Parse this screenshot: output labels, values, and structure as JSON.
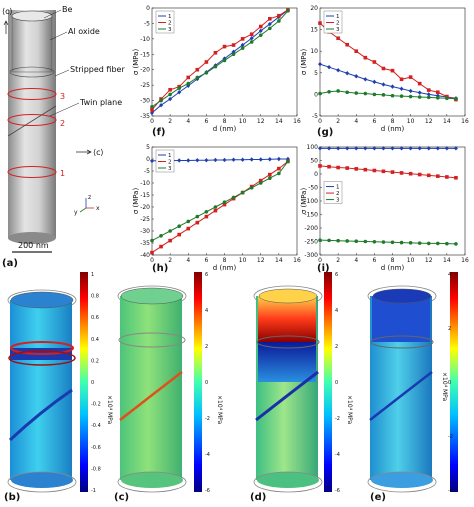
{
  "schematic": {
    "c_axis": "⟨c⟩",
    "c_axis_side": "⟨c⟩",
    "be": "Be",
    "al_oxide": "Al oxide",
    "stripped": "Stripped fiber",
    "twin": "Twin plane",
    "marks": [
      "1",
      "2",
      "3"
    ],
    "scale": "200 nm",
    "axes": {
      "z": "z",
      "y": "y",
      "x": "x"
    }
  },
  "panel_labels": {
    "a": "(a)",
    "b": "(b)",
    "c": "(c)",
    "d": "(d)",
    "e": "(e)",
    "f": "(f)",
    "g": "(g)",
    "h": "(h)",
    "i": "(i)"
  },
  "colorbars": {
    "b": {
      "ticks": [
        "1",
        "0.8",
        "0.6",
        "0.4",
        "0.2",
        "0",
        "-0.2",
        "-0.4",
        "-0.6",
        "-0.8",
        "-1"
      ],
      "label": "×10⁴ MPa"
    },
    "c": {
      "ticks": [
        "6",
        "4",
        "2",
        "0",
        "-2",
        "-4",
        "-6"
      ],
      "label": "×10⁴ MPa"
    },
    "d": {
      "ticks": [
        "6",
        "4",
        "2",
        "0",
        "-2",
        "-4",
        "-6"
      ],
      "label": "×10⁴ MPa"
    },
    "e": {
      "ticks": [
        "4",
        "2",
        "0",
        "-2",
        "-4"
      ],
      "label": "×10⁴ MPa"
    }
  },
  "chart_data": [
    {
      "panel": "f",
      "type": "line",
      "xlabel": "d (nm)",
      "ylabel": "σ (MPa)",
      "x": [
        0,
        1,
        2,
        3,
        4,
        5,
        6,
        7,
        8,
        9,
        10,
        11,
        12,
        13,
        14,
        15
      ],
      "xticks": [
        "0",
        "2",
        "4",
        "6",
        "8",
        "10",
        "12",
        "14",
        "16"
      ],
      "yticks": [
        "0",
        "-5",
        "-10",
        "-15",
        "-20",
        "-25",
        "-30",
        "-35"
      ],
      "xlim": [
        0,
        16
      ],
      "ylim": [
        -35,
        0
      ],
      "legend": "top-left",
      "series": [
        {
          "name": "1",
          "color": "#1f3fb0",
          "marker": "diamond",
          "values": [
            -34,
            -31.5,
            -29.5,
            -27.3,
            -25.2,
            -23,
            -20.8,
            -18.6,
            -16.4,
            -14.2,
            -12,
            -9.8,
            -7.4,
            -5.2,
            -2.9,
            -0.7
          ]
        },
        {
          "name": "2",
          "color": "#d42020",
          "marker": "square",
          "values": [
            -33,
            -29.5,
            -26.5,
            -25.5,
            -22.5,
            -20,
            -17.5,
            -14.5,
            -12.5,
            -12,
            -10,
            -8.5,
            -6,
            -3.5,
            -2.5,
            -0.6
          ]
        },
        {
          "name": "3",
          "color": "#1f7a2a",
          "marker": "circle",
          "values": [
            -32,
            -30,
            -28,
            -26,
            -24.5,
            -22.5,
            -21,
            -19,
            -17,
            -15,
            -13,
            -11,
            -8.8,
            -6.6,
            -4.2,
            -0.9
          ]
        }
      ]
    },
    {
      "panel": "g",
      "type": "line",
      "xlabel": "d (nm)",
      "ylabel": "σ (MPa)",
      "x": [
        0,
        1,
        2,
        3,
        4,
        5,
        6,
        7,
        8,
        9,
        10,
        11,
        12,
        13,
        14,
        15
      ],
      "xticks": [
        "0",
        "2",
        "4",
        "6",
        "8",
        "10",
        "12",
        "14",
        "16"
      ],
      "yticks": [
        "20",
        "15",
        "10",
        "5",
        "0",
        "-5"
      ],
      "xlim": [
        0,
        16
      ],
      "ylim": [
        -5,
        20
      ],
      "legend": "top-left",
      "series": [
        {
          "name": "1",
          "color": "#1f3fb0",
          "marker": "diamond",
          "values": [
            7,
            6.3,
            5.6,
            4.9,
            4.2,
            3.5,
            2.9,
            2.3,
            1.8,
            1.3,
            0.8,
            0.4,
            0,
            -0.3,
            -0.6,
            -0.9
          ]
        },
        {
          "name": "2",
          "color": "#d42020",
          "marker": "square",
          "values": [
            16.5,
            14.5,
            13,
            11.5,
            10,
            8.5,
            7.5,
            6,
            5.5,
            3.5,
            4,
            2.5,
            1,
            0.5,
            -0.5,
            -1.2
          ]
        },
        {
          "name": "3",
          "color": "#1f7a2a",
          "marker": "circle",
          "values": [
            0.2,
            0.6,
            0.8,
            0.5,
            0.3,
            0.2,
            0,
            -0.1,
            -0.3,
            -0.4,
            -0.5,
            -0.6,
            -0.7,
            -0.8,
            -0.9,
            -1
          ]
        }
      ]
    },
    {
      "panel": "h",
      "type": "line",
      "xlabel": "d (nm)",
      "ylabel": "σ (MPa)",
      "x": [
        0,
        1,
        2,
        3,
        4,
        5,
        6,
        7,
        8,
        9,
        10,
        11,
        12,
        13,
        14,
        15
      ],
      "xticks": [
        "0",
        "2",
        "4",
        "6",
        "8",
        "10",
        "12",
        "14",
        "16"
      ],
      "yticks": [
        "5",
        "0",
        "-5",
        "-10",
        "-15",
        "-20",
        "-25",
        "-30",
        "-35",
        "-40"
      ],
      "xlim": [
        0,
        16
      ],
      "ylim": [
        -40,
        5
      ],
      "legend": "top-left",
      "series": [
        {
          "name": "1",
          "color": "#1f3fb0",
          "marker": "diamond",
          "values": [
            -0.8,
            -0.7,
            -0.7,
            -0.6,
            -0.6,
            -0.5,
            -0.5,
            -0.4,
            -0.4,
            -0.3,
            -0.3,
            -0.2,
            -0.2,
            -0.1,
            0,
            0
          ]
        },
        {
          "name": "2",
          "color": "#d42020",
          "marker": "square",
          "values": [
            -39,
            -36.5,
            -34,
            -31.5,
            -29,
            -26.5,
            -24,
            -21.5,
            -19,
            -16.5,
            -14,
            -11.5,
            -9,
            -6.5,
            -4,
            -1
          ]
        },
        {
          "name": "3",
          "color": "#1f7a2a",
          "marker": "circle",
          "values": [
            -34,
            -32,
            -30,
            -28,
            -26,
            -24,
            -22,
            -20,
            -18,
            -16,
            -14,
            -12,
            -10,
            -8,
            -6,
            -1
          ]
        }
      ]
    },
    {
      "panel": "i",
      "type": "line",
      "xlabel": "d (nm)",
      "ylabel": "σ (MPa)",
      "x": [
        0,
        1,
        2,
        3,
        4,
        5,
        6,
        7,
        8,
        9,
        10,
        11,
        12,
        13,
        14,
        15
      ],
      "xticks": [
        "0",
        "2",
        "4",
        "6",
        "8",
        "10",
        "12",
        "14",
        "16"
      ],
      "yticks": [
        "100",
        "50",
        "0",
        "-50",
        "-100",
        "-150",
        "-200",
        "-250",
        "-300"
      ],
      "xlim": [
        0,
        16
      ],
      "ylim": [
        -300,
        100
      ],
      "legend": "left",
      "series": [
        {
          "name": "1",
          "color": "#1f3fb0",
          "marker": "diamond",
          "values": [
            95,
            95,
            95,
            95,
            95,
            95,
            95,
            95,
            95,
            95,
            95,
            95,
            95,
            95,
            95,
            95
          ]
        },
        {
          "name": "2",
          "color": "#d42020",
          "marker": "square",
          "values": [
            30,
            27,
            24,
            22,
            19,
            16,
            13,
            10,
            7,
            4,
            1,
            -2,
            -5,
            -8,
            -11,
            -14
          ]
        },
        {
          "name": "3",
          "color": "#1f7a2a",
          "marker": "circle",
          "values": [
            -245,
            -246,
            -247,
            -248,
            -249,
            -250,
            -251,
            -252,
            -253,
            -254,
            -255,
            -256,
            -257,
            -257,
            -258,
            -259
          ]
        }
      ]
    }
  ]
}
